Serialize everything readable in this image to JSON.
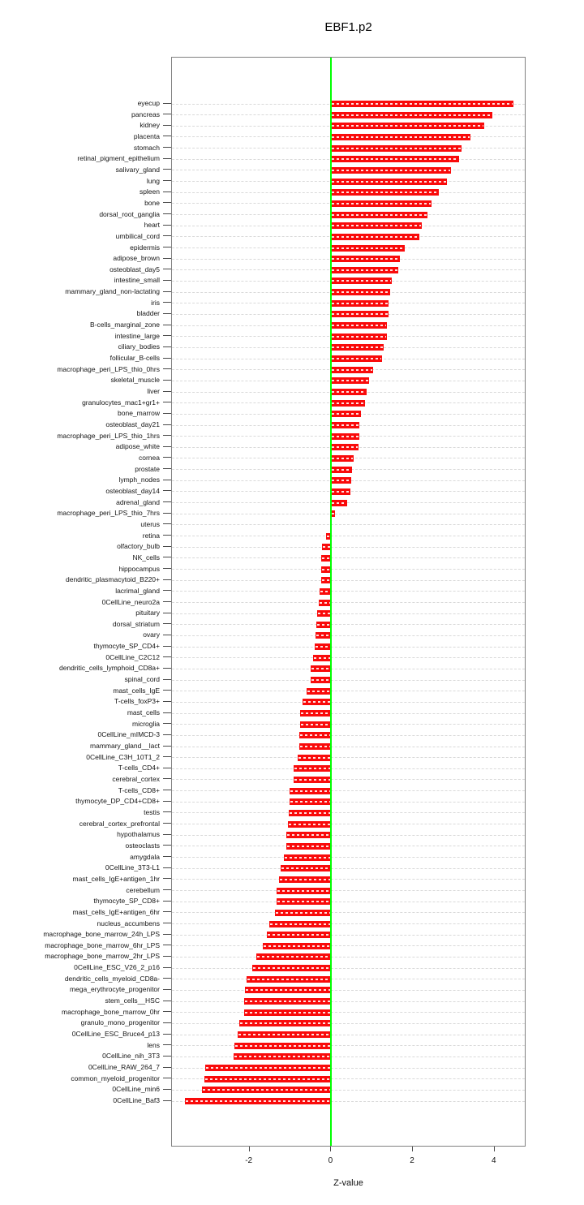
{
  "chart_data": {
    "type": "bar",
    "orientation": "horizontal",
    "title": "EBF1.p2",
    "xlabel": "Z-value",
    "xticks": [
      -2,
      0,
      2,
      4
    ],
    "xlim": [
      -3.9,
      4.78
    ],
    "grid": "dashed horizontal row guides",
    "bar_color": "#ff0000",
    "zero_line_color": "#00ff00",
    "guide_color": "#d9d9d9",
    "categories": [
      "eyecup",
      "pancreas",
      "kidney",
      "placenta",
      "stomach",
      "retinal_pigment_epithelium",
      "salivary_gland",
      "lung",
      "spleen",
      "bone",
      "dorsal_root_ganglia",
      "heart",
      "umbilical_cord",
      "epidermis",
      "adipose_brown",
      "osteoblast_day5",
      "intestine_small",
      "mammary_gland_non-lactating",
      "iris",
      "bladder",
      "B-cells_marginal_zone",
      "intestine_large",
      "ciliary_bodies",
      "follicular_B-cells",
      "macrophage_peri_LPS_thio_0hrs",
      "skeletal_muscle",
      "liver",
      "granulocytes_mac1+gr1+",
      "bone_marrow",
      "osteoblast_day21",
      "macrophage_peri_LPS_thio_1hrs",
      "adipose_white",
      "cornea",
      "prostate",
      "lymph_nodes",
      "osteoblast_day14",
      "adrenal_gland",
      "macrophage_peri_LPS_thio_7hrs",
      "uterus",
      "retina",
      "olfactory_bulb",
      "NK_cells",
      "hippocampus",
      "dendritic_plasmacytoid_B220+",
      "lacrimal_gland",
      "0CellLine_neuro2a",
      "pituitary",
      "dorsal_striatum",
      "ovary",
      "thymocyte_SP_CD4+",
      "0CellLine_C2C12",
      "dendritic_cells_lymphoid_CD8a+",
      "spinal_cord",
      "mast_cells_IgE",
      "T-cells_foxP3+",
      "mast_cells",
      "microglia",
      "0CellLine_mIMCD-3",
      "mammary_gland__lact",
      "0CellLine_C3H_10T1_2",
      "T-cells_CD4+",
      "cerebral_cortex",
      "T-cells_CD8+",
      "thymocyte_DP_CD4+CD8+",
      "testis",
      "cerebral_cortex_prefrontal",
      "hypothalamus",
      "osteoclasts",
      "amygdala",
      "0CellLine_3T3-L1",
      "mast_cells_IgE+antigen_1hr",
      "cerebellum",
      "thymocyte_SP_CD8+",
      "mast_cells_IgE+antigen_6hr",
      "nucleus_accumbens",
      "macrophage_bone_marrow_24h_LPS",
      "macrophage_bone_marrow_6hr_LPS",
      "macrophage_bone_marrow_2hr_LPS",
      "0CellLine_ESC_V26_2_p16",
      "dendritic_cells_myeloid_CD8a-",
      "mega_erythrocyte_progenitor",
      "stem_cells__HSC",
      "macrophage_bone_marrow_0hr",
      "granulo_mono_progenitor",
      "0CellLine_ESC_Bruce4_p13",
      "lens",
      "0CellLine_nih_3T3",
      "0CellLine_RAW_264_7",
      "common_myeloid_progenitor",
      "0CellLine_min6",
      "0CellLine_Baf3"
    ],
    "values": [
      4.46,
      3.95,
      3.75,
      3.41,
      3.2,
      3.13,
      2.93,
      2.83,
      2.64,
      2.45,
      2.36,
      2.22,
      2.16,
      1.81,
      1.69,
      1.64,
      1.49,
      1.45,
      1.41,
      1.4,
      1.37,
      1.36,
      1.28,
      1.25,
      1.03,
      0.92,
      0.87,
      0.83,
      0.72,
      0.68,
      0.68,
      0.67,
      0.55,
      0.5,
      0.49,
      0.47,
      0.39,
      0.1,
      0.02,
      -0.13,
      -0.23,
      -0.24,
      -0.25,
      -0.25,
      -0.29,
      -0.31,
      -0.34,
      -0.37,
      -0.38,
      -0.4,
      -0.45,
      -0.5,
      -0.51,
      -0.61,
      -0.7,
      -0.77,
      -0.77,
      -0.79,
      -0.79,
      -0.83,
      -0.92,
      -0.93,
      -1.01,
      -1.01,
      -1.03,
      -1.05,
      -1.09,
      -1.09,
      -1.16,
      -1.23,
      -1.27,
      -1.34,
      -1.34,
      -1.37,
      -1.52,
      -1.58,
      -1.68,
      -1.83,
      -1.93,
      -2.07,
      -2.12,
      -2.13,
      -2.14,
      -2.26,
      -2.3,
      -2.38,
      -2.39,
      -3.09,
      -3.11,
      -3.17,
      -3.59
    ]
  }
}
